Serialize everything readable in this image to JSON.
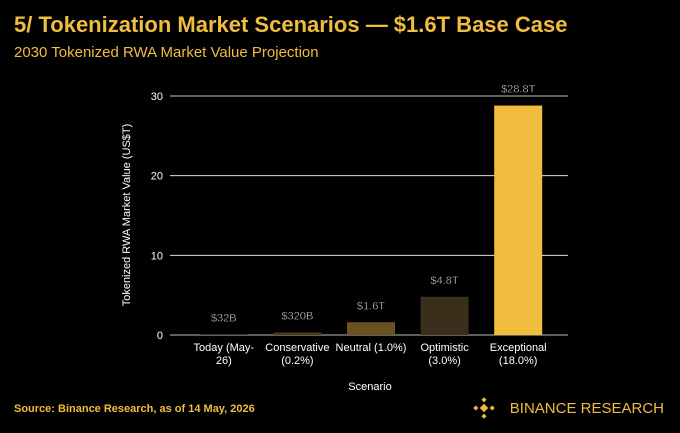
{
  "chart_data": {
    "type": "bar",
    "title": "5/ Tokenization Market Scenarios — $1.6T Base Case",
    "subtitle": "2030 Tokenized RWA Market Value Projection",
    "x_label": "Scenario",
    "y_label": "Tokenized RWA Market Value (US$T)",
    "categories": [
      "Today (May-26)",
      "Conservative (0.2%)",
      "Neutral (1.0%)",
      "Optimistic (3.0%)",
      "Exceptional (18.0%)"
    ],
    "values": [
      0.032,
      0.32,
      1.6,
      4.8,
      28.8
    ],
    "value_labels": [
      "$32B",
      "$320B",
      "$1.6T",
      "$4.8T",
      "$28.8T"
    ],
    "colors": [
      "#1a160c",
      "#4a3b17",
      "#6b5320",
      "#3a2f1a",
      "#f0bd3e"
    ],
    "ylim": [
      0,
      30
    ],
    "yticks": [
      0,
      10,
      20,
      30
    ],
    "grid": true,
    "source": "Source: Binance Research, as of 14 May, 2026",
    "brand": "BINANCE RESEARCH"
  }
}
